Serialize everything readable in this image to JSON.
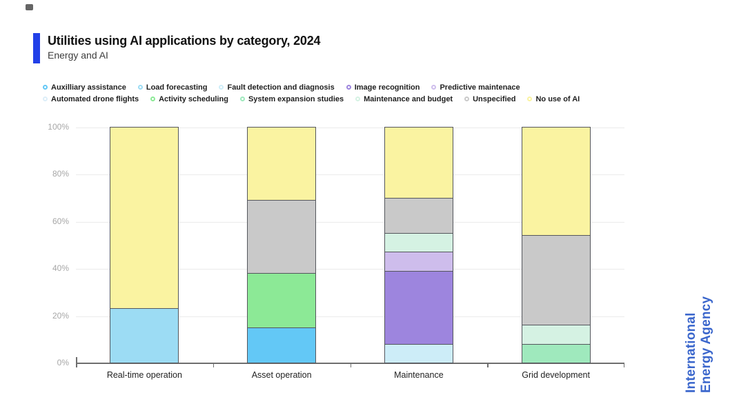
{
  "header": {
    "title": "Utilities using AI applications by category, 2024",
    "subtitle": "Energy and AI",
    "accent_color": "#2240e8"
  },
  "logo": {
    "line1": "International",
    "line2": "Energy Agency",
    "color": "#3a66cc"
  },
  "chart_data": {
    "type": "bar",
    "variant": "stacked-100-percent",
    "title": "Utilities using AI applications by category, 2024",
    "unit": "%",
    "categories": [
      "Real-time operation",
      "Asset operation",
      "Maintenance",
      "Grid development"
    ],
    "series": [
      {
        "name": "Auxilliary assistance",
        "color": "#63c8f6",
        "values": [
          0,
          15,
          0,
          0
        ]
      },
      {
        "name": "Load forecasting",
        "color": "#9cdcf4",
        "values": [
          23,
          0,
          0,
          0
        ]
      },
      {
        "name": "Fault detection and diagnosis",
        "color": "#cdedf8",
        "values": [
          0,
          0,
          8,
          0
        ]
      },
      {
        "name": "Image recognition",
        "color": "#9d85de",
        "values": [
          0,
          0,
          31,
          0
        ]
      },
      {
        "name": "Predictive maintenace",
        "color": "#cebdec",
        "values": [
          0,
          0,
          8,
          0
        ]
      },
      {
        "name": "Automated drone flights",
        "color": "#dceef8",
        "values": [
          0,
          0,
          0,
          0
        ]
      },
      {
        "name": "Activity scheduling",
        "color": "#8ce996",
        "values": [
          0,
          23,
          0,
          0
        ]
      },
      {
        "name": "System expansion studies",
        "color": "#9fe9bd",
        "values": [
          0,
          0,
          0,
          8
        ]
      },
      {
        "name": "Maintenance and budget",
        "color": "#d5f2e3",
        "values": [
          0,
          0,
          8,
          8
        ]
      },
      {
        "name": "Unspecified",
        "color": "#c9c9c9",
        "values": [
          0,
          31,
          15,
          38
        ]
      },
      {
        "name": "No use of AI",
        "color": "#faf3a1",
        "values": [
          77,
          31,
          30,
          46
        ]
      }
    ],
    "yticks": [
      "0%",
      "20%",
      "40%",
      "60%",
      "80%",
      "100%"
    ],
    "ylim": [
      0,
      100
    ],
    "grid": true,
    "legend_position": "top",
    "legend_rows": [
      [
        0,
        1,
        2,
        3,
        4
      ],
      [
        5,
        6,
        7,
        8,
        9,
        10
      ]
    ]
  }
}
